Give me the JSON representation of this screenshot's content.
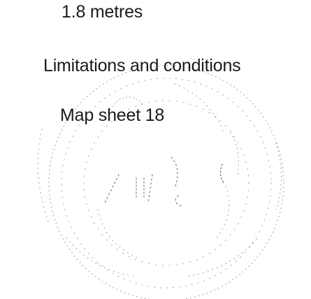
{
  "document": {
    "lines": [
      "1.8 metres",
      "Limitations and conditions",
      "Map sheet 18"
    ]
  },
  "colors": {
    "text": "#1a1a1a",
    "stamp": "#9a9a9a"
  }
}
